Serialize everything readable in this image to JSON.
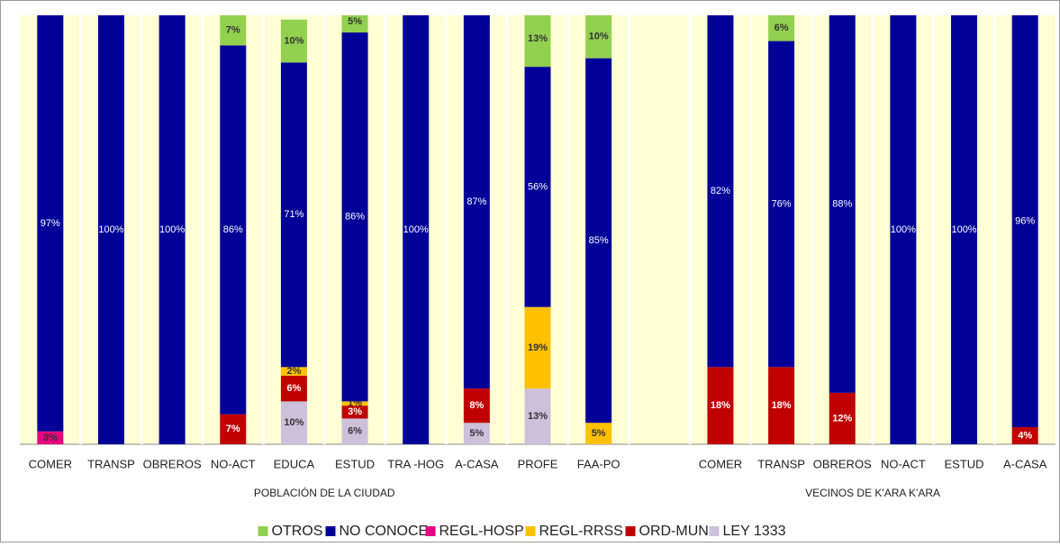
{
  "chart_data": {
    "type": "stacked_bar",
    "categories": [
      "COMER",
      "TRANSP",
      "OBREROS",
      "NO-ACT",
      "EDUCA",
      "ESTUD",
      "TRA -HOG",
      "A-CASA",
      "PROFE",
      "FAA-PO",
      null,
      "COMER",
      "TRANSP",
      "OBREROS",
      "NO-ACT",
      "ESTUD",
      "A-CASA"
    ],
    "groups": [
      "POBLACIÓN DE LA CIUDAD",
      "VECINOS DE K'ARA K'ARA"
    ],
    "ylim": [
      0,
      100
    ],
    "series": [
      {
        "name": "LEY 1333",
        "color": "#ccc0da",
        "label_color": "#333333",
        "values": [
          null,
          null,
          null,
          null,
          10,
          6,
          null,
          5,
          13,
          null,
          null,
          null,
          null,
          null,
          null,
          null,
          null
        ],
        "value_labels": [
          null,
          null,
          null,
          null,
          "10%",
          "6%",
          null,
          "5%",
          "13%",
          null,
          null,
          null,
          null,
          null,
          null,
          null,
          null
        ]
      },
      {
        "name": "ORD-MUN",
        "color": "#c00000",
        "label_color": "#ffffff",
        "values": [
          null,
          null,
          null,
          7,
          6,
          3,
          null,
          8,
          null,
          null,
          null,
          18,
          18,
          12,
          null,
          null,
          4
        ],
        "value_labels": [
          null,
          null,
          null,
          "7%",
          "6%",
          "3%",
          null,
          "8%",
          null,
          null,
          null,
          "18%",
          "18%",
          "12%",
          null,
          null,
          "4%"
        ]
      },
      {
        "name": "REGL-RRSS",
        "color": "#ffc000",
        "label_color": "#333333",
        "values": [
          null,
          null,
          null,
          null,
          2,
          1,
          null,
          null,
          19,
          5,
          null,
          null,
          null,
          null,
          null,
          null,
          null
        ],
        "value_labels": [
          null,
          null,
          null,
          null,
          "2%",
          "1%",
          null,
          null,
          "19%",
          "5%",
          null,
          null,
          null,
          null,
          null,
          null,
          null
        ]
      },
      {
        "name": "REGL-HOSP",
        "color": "#e6007e",
        "label_color": "#333333",
        "values": [
          3,
          null,
          null,
          null,
          null,
          null,
          null,
          null,
          null,
          null,
          null,
          null,
          null,
          null,
          null,
          null,
          null
        ],
        "value_labels": [
          "3%",
          null,
          null,
          null,
          null,
          null,
          null,
          null,
          null,
          null,
          null,
          null,
          null,
          null,
          null,
          null,
          null
        ]
      },
      {
        "name": "NO CONOCE",
        "color": "#000099",
        "label_color": "#ffffff",
        "values": [
          97,
          100,
          100,
          86,
          71,
          86,
          100,
          87,
          56,
          85,
          null,
          82,
          76,
          88,
          100,
          100,
          96
        ],
        "value_labels": [
          "97%",
          "100%",
          "100%",
          "86%",
          "71%",
          "86%",
          "100%",
          "87%",
          "56%",
          "85%",
          null,
          "82%",
          "76%",
          "88%",
          "100%",
          "100%",
          "96%"
        ]
      },
      {
        "name": "OTROS",
        "color": "#92d050",
        "label_color": "#333333",
        "values": [
          null,
          null,
          null,
          7,
          10,
          5,
          null,
          null,
          13,
          10,
          null,
          null,
          6,
          null,
          null,
          null,
          null
        ],
        "value_labels": [
          null,
          null,
          null,
          "7%",
          "10%",
          "5%",
          null,
          null,
          "13%",
          "10%",
          null,
          null,
          "6%",
          null,
          null,
          null,
          null
        ]
      }
    ]
  }
}
